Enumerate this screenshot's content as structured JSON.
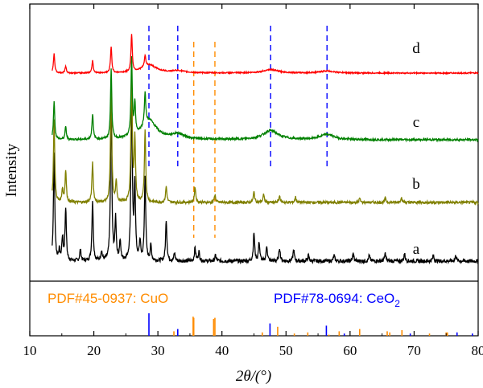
{
  "chart_data": {
    "type": "line",
    "title": "",
    "xlabel": "2θ/(°)",
    "ylabel": "Intensity",
    "xlim": [
      10,
      80
    ],
    "xticks": [
      10,
      20,
      30,
      40,
      50,
      60,
      70,
      80
    ],
    "grid": false,
    "series": [
      {
        "name": "a",
        "color": "#000000",
        "baseline": 0.0,
        "noise": 0.01,
        "peaks": [
          {
            "x": 13.8,
            "h": 0.58
          },
          {
            "x": 14.6,
            "h": 0.05
          },
          {
            "x": 15.1,
            "h": 0.12
          },
          {
            "x": 15.6,
            "h": 0.28
          },
          {
            "x": 17.9,
            "h": 0.06
          },
          {
            "x": 19.8,
            "h": 0.32
          },
          {
            "x": 21.2,
            "h": 0.05
          },
          {
            "x": 22.7,
            "h": 0.88
          },
          {
            "x": 23.4,
            "h": 0.22
          },
          {
            "x": 24.1,
            "h": 0.1
          },
          {
            "x": 25.9,
            "h": 0.95
          },
          {
            "x": 26.4,
            "h": 0.4
          },
          {
            "x": 27.2,
            "h": 0.1
          },
          {
            "x": 28.0,
            "h": 0.45
          },
          {
            "x": 28.9,
            "h": 0.08
          },
          {
            "x": 31.3,
            "h": 0.22
          },
          {
            "x": 32.6,
            "h": 0.04
          },
          {
            "x": 35.8,
            "h": 0.07
          },
          {
            "x": 36.4,
            "h": 0.05
          },
          {
            "x": 39.0,
            "h": 0.03
          },
          {
            "x": 45.0,
            "h": 0.15
          },
          {
            "x": 45.8,
            "h": 0.1
          },
          {
            "x": 47.0,
            "h": 0.08
          },
          {
            "x": 49.0,
            "h": 0.07
          },
          {
            "x": 51.2,
            "h": 0.06
          },
          {
            "x": 53.5,
            "h": 0.03
          },
          {
            "x": 57.5,
            "h": 0.03
          },
          {
            "x": 60.5,
            "h": 0.04
          },
          {
            "x": 63.0,
            "h": 0.03
          },
          {
            "x": 65.5,
            "h": 0.04
          },
          {
            "x": 68.5,
            "h": 0.04
          },
          {
            "x": 73.0,
            "h": 0.03
          },
          {
            "x": 76.5,
            "h": 0.03
          }
        ]
      },
      {
        "name": "b",
        "color": "#808000",
        "baseline": 0.0,
        "noise": 0.01,
        "peaks": [
          {
            "x": 13.8,
            "h": 0.62
          },
          {
            "x": 15.1,
            "h": 0.1
          },
          {
            "x": 15.6,
            "h": 0.24
          },
          {
            "x": 19.8,
            "h": 0.3
          },
          {
            "x": 22.7,
            "h": 0.92
          },
          {
            "x": 23.5,
            "h": 0.15
          },
          {
            "x": 25.9,
            "h": 1.0
          },
          {
            "x": 26.4,
            "h": 0.48
          },
          {
            "x": 28.0,
            "h": 0.55
          },
          {
            "x": 31.3,
            "h": 0.12
          },
          {
            "x": 35.8,
            "h": 0.12
          },
          {
            "x": 38.9,
            "h": 0.06
          },
          {
            "x": 45.0,
            "h": 0.08
          },
          {
            "x": 46.5,
            "h": 0.06
          },
          {
            "x": 49.0,
            "h": 0.05
          },
          {
            "x": 51.5,
            "h": 0.04
          },
          {
            "x": 61.5,
            "h": 0.03
          },
          {
            "x": 65.5,
            "h": 0.03
          },
          {
            "x": 68.0,
            "h": 0.04
          }
        ]
      },
      {
        "name": "c",
        "color": "#008000",
        "baseline": 0.0,
        "noise": 0.008,
        "peaks": [
          {
            "x": 13.8,
            "h": 0.3
          },
          {
            "x": 15.6,
            "h": 0.1
          },
          {
            "x": 19.8,
            "h": 0.2
          },
          {
            "x": 22.7,
            "h": 0.55
          },
          {
            "x": 25.9,
            "h": 0.6
          },
          {
            "x": 26.4,
            "h": 0.25
          },
          {
            "x": 28.0,
            "h": 0.25
          },
          {
            "x": 28.6,
            "h": 0.15,
            "w": 1.4
          },
          {
            "x": 33.1,
            "h": 0.04,
            "w": 1.2
          },
          {
            "x": 47.6,
            "h": 0.07,
            "w": 1.4
          },
          {
            "x": 56.4,
            "h": 0.04,
            "w": 1.3
          }
        ]
      },
      {
        "name": "d",
        "color": "#ff0000",
        "baseline": 0.0,
        "noise": 0.009,
        "peaks": [
          {
            "x": 13.8,
            "h": 0.28
          },
          {
            "x": 15.6,
            "h": 0.1
          },
          {
            "x": 19.8,
            "h": 0.18
          },
          {
            "x": 22.7,
            "h": 0.38
          },
          {
            "x": 25.9,
            "h": 0.55
          },
          {
            "x": 28.0,
            "h": 0.16
          },
          {
            "x": 28.6,
            "h": 0.12,
            "w": 1.4
          },
          {
            "x": 33.1,
            "h": 0.03,
            "w": 1.2
          },
          {
            "x": 47.6,
            "h": 0.05,
            "w": 1.4
          },
          {
            "x": 56.4,
            "h": 0.03,
            "w": 1.3
          }
        ]
      }
    ],
    "reference_lines": {
      "CeO2": [
        28.6,
        33.1,
        47.6,
        56.4
      ],
      "CuO": [
        35.6,
        38.9
      ]
    },
    "reference_patterns": [
      {
        "label": "PDF#45-0937: CuO",
        "color": "#ff8c00",
        "positions": [
          32.5,
          35.5,
          35.6,
          38.7,
          38.9,
          46.3,
          48.7,
          51.3,
          53.4,
          56.7,
          58.3,
          61.5,
          65.8,
          66.2,
          68.1,
          72.4,
          75.0,
          75.2
        ],
        "heights": [
          0.2,
          0.85,
          0.8,
          0.75,
          0.8,
          0.15,
          0.4,
          0.1,
          0.15,
          0.05,
          0.2,
          0.3,
          0.2,
          0.15,
          0.25,
          0.1,
          0.15,
          0.15
        ]
      },
      {
        "label_text": "PDF#78-0694: CeO",
        "label_sub": "2",
        "color": "#0000ff",
        "positions": [
          28.6,
          33.1,
          47.5,
          56.3,
          59.1,
          69.4,
          76.7,
          79.1
        ],
        "heights": [
          1.0,
          0.3,
          0.55,
          0.45,
          0.1,
          0.1,
          0.15,
          0.1
        ]
      }
    ]
  }
}
